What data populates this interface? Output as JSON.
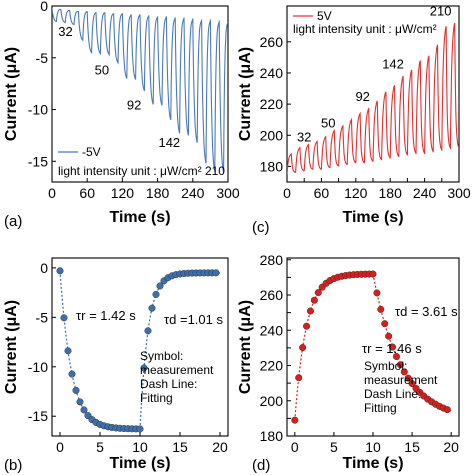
{
  "panels": [
    {
      "id": "a",
      "type": "line",
      "panel_label": "(a)",
      "xlabel": "Time (s)",
      "ylabel": "Current (μA)",
      "xlim": [
        0,
        300
      ],
      "ylim": [
        -17,
        0
      ],
      "xticks": [
        0,
        60,
        120,
        180,
        240,
        300
      ],
      "yticks": [
        0,
        -5,
        -10,
        -15
      ],
      "color": "#4a7ab8",
      "legend": {
        "position": "bottom-left",
        "label": "-5V"
      },
      "note": "light intensity unit : μW/cm² 210",
      "annotations": [
        {
          "text": "32",
          "x": 23,
          "y": -2.9
        },
        {
          "text": "50",
          "x": 85,
          "y": -6.6
        },
        {
          "text": "92",
          "x": 140,
          "y": -10.0
        },
        {
          "text": "142",
          "x": 200,
          "y": -13.6
        }
      ],
      "cycles": {
        "period": 15,
        "base": [
          -0.2,
          -0.3,
          -0.4,
          -0.5,
          -0.5,
          -0.6,
          -0.6,
          -0.7,
          -0.7,
          -0.8,
          -0.8,
          -0.9,
          -1.0,
          -1.0,
          -1.1,
          -1.1,
          -1.2,
          -1.3,
          -1.3,
          -1.4
        ],
        "peak": [
          -1.5,
          -1.6,
          -1.8,
          -3.3,
          -4.5,
          -4.6,
          -4.7,
          -5.5,
          -7.0,
          -7.1,
          -8.2,
          -9.5,
          -9.6,
          -11.0,
          -12.3,
          -12.5,
          -13.2,
          -15.2,
          -16.0,
          -16.1
        ]
      }
    },
    {
      "id": "c",
      "type": "line",
      "panel_label": "(c)",
      "xlabel": "Time (s)",
      "ylabel": "Current (μA)",
      "xlim": [
        0,
        300
      ],
      "ylim": [
        170,
        283
      ],
      "xticks": [
        0,
        30,
        60,
        90,
        120,
        150,
        180,
        210,
        240,
        270,
        300
      ],
      "yticks": [
        180,
        200,
        220,
        240,
        260
      ],
      "color": "#e03030",
      "legend": {
        "position": "top-left",
        "label": "5V"
      },
      "note": "light intensity unit : μW/cm²",
      "annotations": [
        {
          "text": "32",
          "x": 30,
          "y": 196
        },
        {
          "text": "50",
          "x": 72,
          "y": 205
        },
        {
          "text": "92",
          "x": 132,
          "y": 222
        },
        {
          "text": "142",
          "x": 185,
          "y": 243
        },
        {
          "text": "210",
          "x": 268,
          "y": 277
        }
      ],
      "cycles": {
        "period": 15,
        "base": [
          175,
          176,
          177,
          178,
          178,
          179,
          180,
          181,
          182,
          182,
          183,
          184,
          185,
          186,
          187,
          188,
          188,
          189,
          190,
          191
        ],
        "peak": [
          188,
          192,
          194,
          196,
          199,
          203,
          206,
          210,
          214,
          217,
          222,
          228,
          232,
          238,
          242,
          248,
          251,
          258,
          270,
          272
        ]
      }
    },
    {
      "id": "b",
      "type": "scatter",
      "panel_label": "(b)",
      "xlabel": "Time (s)",
      "ylabel": "Current (μA)",
      "xlim": [
        -1,
        21
      ],
      "ylim": [
        -17,
        1
      ],
      "xticks": [
        0,
        5,
        10,
        15,
        20
      ],
      "yticks": [
        0,
        -5,
        -10,
        -15
      ],
      "color": "#3f6fa8",
      "fit_rise": "τr = 1.42 s",
      "fit_decay": "τd =1.01 s",
      "legend_note": [
        "Symbol:",
        "measurement",
        "Dash Line:",
        "Fitting"
      ],
      "model": {
        "kind": "decrease",
        "y0": -0.3,
        "y1": -16.3,
        "t_off": 10,
        "tau_on": 1.42,
        "y_end": -0.5,
        "tau_off": 1.01
      }
    },
    {
      "id": "d",
      "type": "scatter",
      "panel_label": "(d)",
      "xlabel": "Time (s)",
      "ylabel": "Current (μA)",
      "xlim": [
        -1,
        21
      ],
      "ylim": [
        180,
        281
      ],
      "xticks": [
        0,
        5,
        10,
        15,
        20
      ],
      "yticks": [
        180,
        190,
        200,
        210,
        220,
        230,
        240,
        250,
        260,
        270,
        280
      ],
      "color": "#d62020",
      "fit_rise": "τr = 1.46 s",
      "fit_decay": "τd = 3.61 s",
      "legend_note": [
        "Symbol:",
        "measurement",
        "Dash Line:",
        "Fitting"
      ],
      "model": {
        "kind": "increase",
        "y0": 189,
        "y1": 272,
        "t_off": 10,
        "tau_on": 1.46,
        "y_end": 189,
        "tau_off": 3.61
      }
    }
  ]
}
